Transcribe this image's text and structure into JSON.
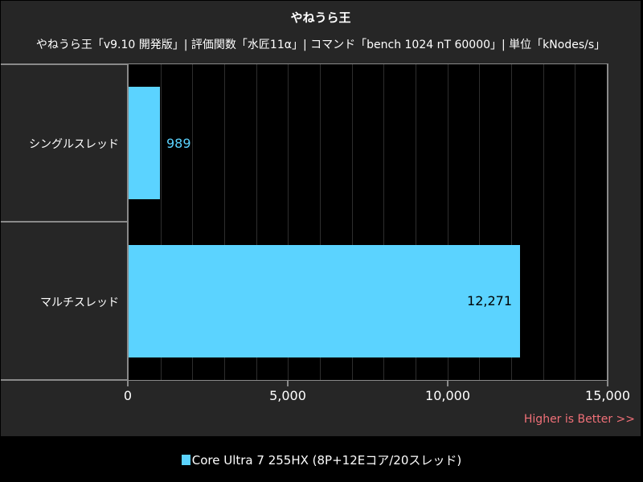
{
  "header": {
    "title": "やねうら王",
    "subtitle": "やねうら王「v9.10 開発版」| 評価関数「水匠11α」| コマンド「bench 1024 nT 60000」| 単位「kNodes/s」"
  },
  "axis": {
    "ticks": [
      "0",
      "5,000",
      "10,000",
      "15,000"
    ],
    "note": "Higher is Better >>"
  },
  "legend": {
    "label": "Core Ultra 7 255HX (8P+12Eコア/20スレッド)"
  },
  "colors": {
    "bar": "#5bd3ff",
    "note": "#f07078",
    "panel": "#262626",
    "plot": "#000000"
  },
  "chart_data": {
    "type": "bar",
    "orientation": "horizontal",
    "title": "やねうら王",
    "subtitle": "やねうら王「v9.10 開発版」| 評価関数「水匠11α」| コマンド「bench 1024 nT 60000」| 単位「kNodes/s」",
    "categories": [
      "シングルスレッド",
      "マルチスレッド"
    ],
    "series": [
      {
        "name": "Core Ultra 7 255HX (8P+12Eコア/20スレッド)",
        "values": [
          989,
          12271
        ],
        "labels": [
          "989",
          "12,271"
        ]
      }
    ],
    "xlabel": "",
    "ylabel": "",
    "xlim": [
      0,
      15000
    ],
    "xticks": [
      0,
      5000,
      10000,
      15000
    ],
    "grid": "vertical every 1000",
    "legend_position": "bottom",
    "annotation": "Higher is Better >>"
  }
}
